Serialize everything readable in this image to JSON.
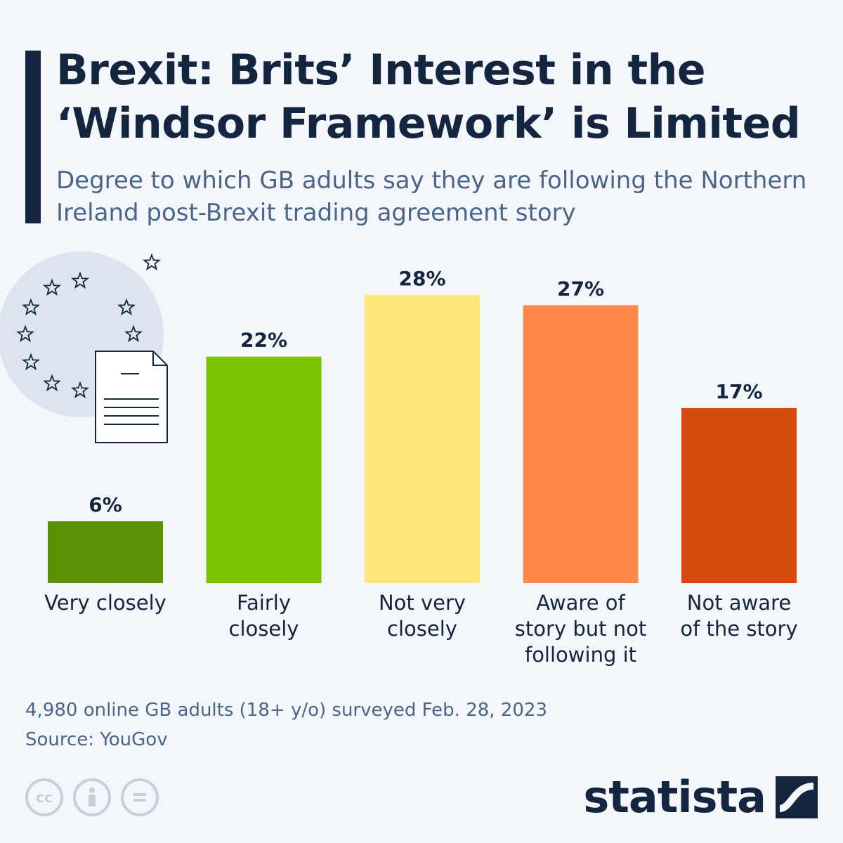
{
  "header": {
    "title": "Brexit: Brits’ Interest in the ‘Windsor Framework’ is Limited",
    "subtitle": "Degree to which GB adults say they are following the Northern Ireland post-Brexit trading agreement story"
  },
  "chart_data": {
    "type": "bar",
    "categories": [
      [
        "Very closely"
      ],
      [
        "Fairly",
        "closely"
      ],
      [
        "Not very",
        "closely"
      ],
      [
        "Aware of",
        "story but not",
        "following it"
      ],
      [
        "Not aware",
        "of the story"
      ]
    ],
    "values": [
      6,
      22,
      28,
      27,
      17
    ],
    "value_labels": [
      "6%",
      "22%",
      "28%",
      "27%",
      "17%"
    ],
    "colors": [
      "#5a9106",
      "#7dc400",
      "#ffe678",
      "#ff884a",
      "#d64a0e"
    ],
    "ylim": [
      0,
      30
    ],
    "grid": false,
    "title": "",
    "xlabel": "",
    "ylabel": ""
  },
  "footer": {
    "note": "4,980 online GB adults (18+ y/o) surveyed Feb. 28, 2023",
    "source": "Source: YouGov",
    "brand": "statista",
    "license_icons": [
      "cc-icon",
      "attribution-icon",
      "no-derivatives-icon"
    ]
  }
}
